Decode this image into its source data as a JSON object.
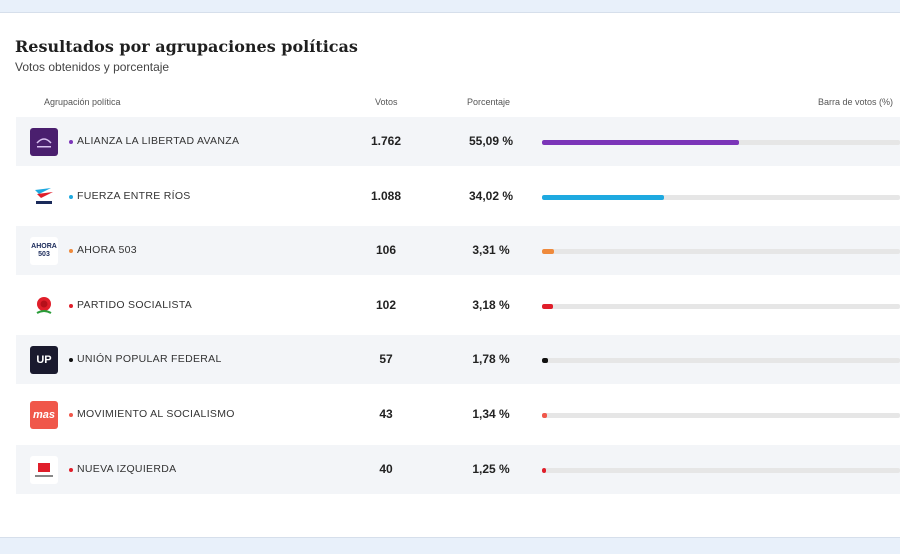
{
  "title": "Resultados por agrupaciones políticas",
  "subtitle": "Votos obtenidos y porcentaje",
  "headers": {
    "party": "Agrupación política",
    "votes": "Votos",
    "percent": "Porcentaje",
    "bar": "Barra de votos (%)"
  },
  "rows": [
    {
      "name": "ALIANZA LA LIBERTAD AVANZA",
      "votes": "1.762",
      "percent": "55,09 %",
      "share": 55.09,
      "color": "#7b35b8",
      "logo_bg": "#4a1f6e",
      "logo_text": "",
      "icon": "libertad-avanza-logo"
    },
    {
      "name": "FUERZA ENTRE RÍOS",
      "votes": "1.088",
      "percent": "34,02 %",
      "share": 34.02,
      "color": "#1ea9e0",
      "logo_bg": "#ffffff",
      "logo_text": "",
      "icon": "fuerza-entre-rios-logo"
    },
    {
      "name": "AHORA 503",
      "votes": "106",
      "percent": "3,31 %",
      "share": 3.31,
      "color": "#ef8a3c",
      "logo_bg": "#ffffff",
      "logo_text": "AHORA 503",
      "icon": "ahora-503-logo"
    },
    {
      "name": "PARTIDO SOCIALISTA",
      "votes": "102",
      "percent": "3,18 %",
      "share": 3.18,
      "color": "#e01e2a",
      "logo_bg": "#ffffff",
      "logo_text": "",
      "icon": "rose-icon"
    },
    {
      "name": "UNIÓN POPULAR FEDERAL",
      "votes": "57",
      "percent": "1,78 %",
      "share": 1.78,
      "color": "#111111",
      "logo_bg": "#1a1a2e",
      "logo_text": "UP",
      "icon": "upf-logo"
    },
    {
      "name": "MOVIMIENTO AL SOCIALISMO",
      "votes": "43",
      "percent": "1,34 %",
      "share": 1.34,
      "color": "#f0574a",
      "logo_bg": "#f0574a",
      "logo_text": "mas",
      "icon": "mas-logo"
    },
    {
      "name": "NUEVA IZQUIERDA",
      "votes": "40",
      "percent": "1,25 %",
      "share": 1.25,
      "color": "#e01e2a",
      "logo_bg": "#ffffff",
      "logo_text": "",
      "icon": "nueva-izquierda-logo"
    }
  ]
}
